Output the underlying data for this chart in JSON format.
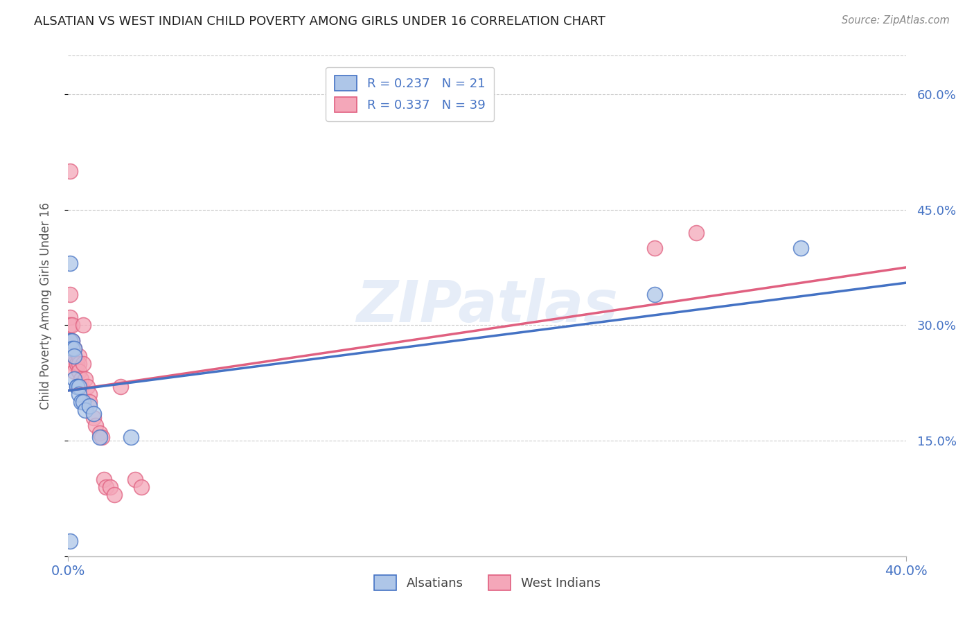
{
  "title": "ALSATIAN VS WEST INDIAN CHILD POVERTY AMONG GIRLS UNDER 16 CORRELATION CHART",
  "source": "Source: ZipAtlas.com",
  "ylabel": "Child Poverty Among Girls Under 16",
  "xlim": [
    0.0,
    0.4
  ],
  "ylim": [
    0.0,
    0.65
  ],
  "yticks": [
    0.0,
    0.15,
    0.3,
    0.45,
    0.6
  ],
  "ytick_labels": [
    "",
    "15.0%",
    "30.0%",
    "45.0%",
    "60.0%"
  ],
  "xtick_labels": [
    "0.0%",
    "40.0%"
  ],
  "alsatian_R": 0.237,
  "alsatian_N": 21,
  "westindian_R": 0.337,
  "westindian_N": 39,
  "alsatian_color": "#aec6e8",
  "alsatian_line_color": "#4472c4",
  "westindian_color": "#f4a7b9",
  "westindian_line_color": "#e06080",
  "watermark": "ZIPatlas",
  "alsatian_x": [
    0.001,
    0.001,
    0.002,
    0.002,
    0.003,
    0.003,
    0.003,
    0.004,
    0.004,
    0.005,
    0.005,
    0.006,
    0.007,
    0.008,
    0.01,
    0.012,
    0.015,
    0.03,
    0.001,
    0.28,
    0.35
  ],
  "alsatian_y": [
    0.38,
    0.28,
    0.28,
    0.27,
    0.27,
    0.26,
    0.23,
    0.22,
    0.22,
    0.22,
    0.21,
    0.2,
    0.2,
    0.19,
    0.195,
    0.185,
    0.155,
    0.155,
    0.02,
    0.34,
    0.4
  ],
  "westindian_x": [
    0.001,
    0.001,
    0.001,
    0.001,
    0.001,
    0.002,
    0.002,
    0.002,
    0.003,
    0.003,
    0.003,
    0.003,
    0.003,
    0.004,
    0.004,
    0.005,
    0.005,
    0.005,
    0.006,
    0.006,
    0.007,
    0.007,
    0.008,
    0.009,
    0.01,
    0.01,
    0.012,
    0.013,
    0.015,
    0.016,
    0.017,
    0.018,
    0.02,
    0.022,
    0.025,
    0.032,
    0.035,
    0.28,
    0.3
  ],
  "westindian_y": [
    0.5,
    0.34,
    0.31,
    0.3,
    0.28,
    0.3,
    0.28,
    0.27,
    0.27,
    0.26,
    0.26,
    0.25,
    0.24,
    0.25,
    0.25,
    0.26,
    0.25,
    0.24,
    0.23,
    0.22,
    0.3,
    0.25,
    0.23,
    0.22,
    0.21,
    0.2,
    0.18,
    0.17,
    0.16,
    0.155,
    0.1,
    0.09,
    0.09,
    0.08,
    0.22,
    0.1,
    0.09,
    0.4,
    0.42
  ],
  "reg_alsatian": [
    0.215,
    0.355
  ],
  "reg_westindian": [
    0.215,
    0.375
  ],
  "background_color": "#ffffff",
  "grid_color": "#cccccc",
  "title_color": "#222222",
  "axis_label_color": "#555555",
  "tick_color": "#4472c4"
}
